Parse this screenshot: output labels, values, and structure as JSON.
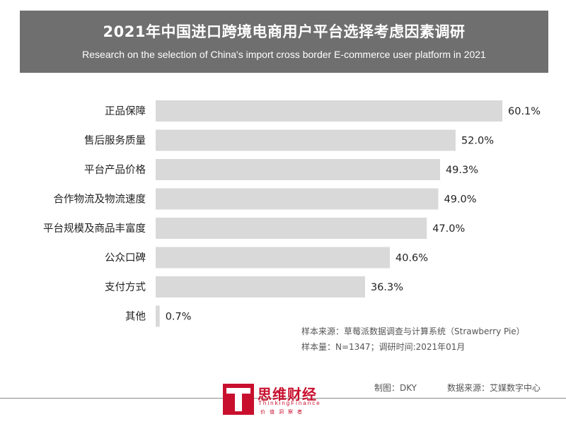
{
  "header": {
    "title_zh": "2021年中国进口跨境电商用户平台选择考虑因素调研",
    "title_en": "Research on the selection of China's import cross border E-commerce user platform in 2021"
  },
  "chart_data": {
    "type": "bar",
    "orientation": "horizontal",
    "categories": [
      "正品保障",
      "售后服务质量",
      "平台产品价格",
      "合作物流及物流速度",
      "平台规模及商品丰富度",
      "公众口碑",
      "支付方式",
      "其他"
    ],
    "values": [
      60.1,
      52.0,
      49.3,
      49.0,
      47.0,
      40.6,
      36.3,
      0.7
    ],
    "value_labels": [
      "60.1%",
      "52.0%",
      "49.3%",
      "49.0%",
      "47.0%",
      "40.6%",
      "36.3%",
      "0.7%"
    ],
    "unit": "%",
    "bar_color": "#d9d9d9",
    "grid": false,
    "legend": "none"
  },
  "notes": {
    "sample_source": "样本来源：草莓派数据调查与计算系统（Strawberry Pie）",
    "sample_size": "样本量：N=1347；调研时间:2021年01月"
  },
  "footer": {
    "maker": "制图：DKY",
    "data_source": "数据来源：艾媒数字中心",
    "logo_name": "思维财经",
    "logo_sub": "ThinkingFinance",
    "logo_tagline": "价值洞察者"
  },
  "colors": {
    "header_bg": "#6f6f6f",
    "brand_red": "#c8102e",
    "bar": "#d9d9d9"
  }
}
